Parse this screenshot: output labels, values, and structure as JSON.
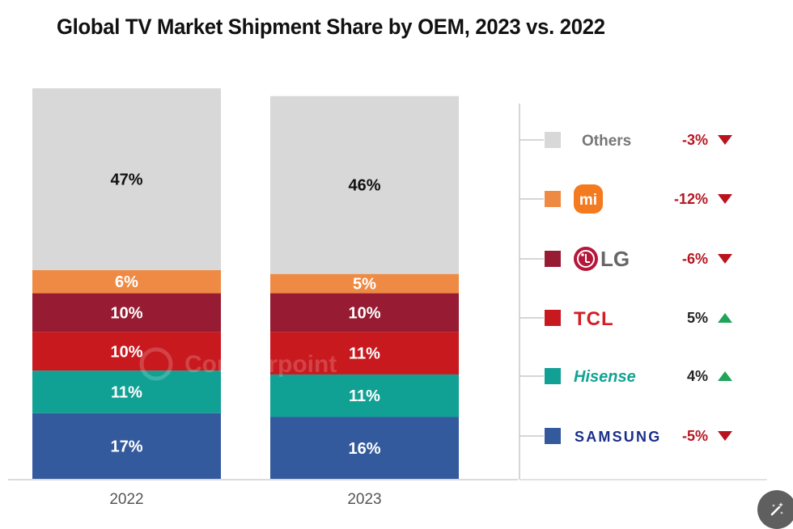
{
  "chart_data": {
    "type": "bar",
    "stacked": true,
    "title": "Global TV Market Shipment Share by OEM, 2023 vs. 2022",
    "xlabel": "",
    "ylabel": "",
    "ylim": [
      0,
      100
    ],
    "grid": false,
    "categories": [
      "2022",
      "2023"
    ],
    "series": [
      {
        "name": "Samsung",
        "color": "#345a9e",
        "label_color": "#ffffff",
        "values": [
          17,
          16
        ],
        "labels": [
          "17%",
          "16%"
        ]
      },
      {
        "name": "Hisense",
        "color": "#11a094",
        "label_color": "#ffffff",
        "values": [
          11,
          11
        ],
        "labels": [
          "11%",
          "11%"
        ]
      },
      {
        "name": "TCL",
        "color": "#c8191f",
        "label_color": "#ffffff",
        "values": [
          10,
          11
        ],
        "labels": [
          "10%",
          "11%"
        ]
      },
      {
        "name": "LG",
        "color": "#971c33",
        "label_color": "#ffffff",
        "values": [
          10,
          10
        ],
        "labels": [
          "10%",
          "10%"
        ]
      },
      {
        "name": "Xiaomi",
        "color": "#ef8a44",
        "label_color": "#ffffff",
        "values": [
          6,
          5
        ],
        "labels": [
          "6%",
          "5%"
        ]
      },
      {
        "name": "Others",
        "color": "#d8d8d8",
        "label_color": "#111111",
        "values": [
          47,
          46
        ],
        "labels": [
          "47%",
          "46%"
        ]
      }
    ],
    "legend": {
      "placement": "right",
      "items": [
        {
          "name": "Others",
          "brand_text": "Others",
          "color": "#d8d8d8",
          "text_color": "#777777",
          "change": "-3%",
          "direction": "down",
          "logo": "text"
        },
        {
          "name": "Xiaomi",
          "brand_text": "mi",
          "color": "#ef8a44",
          "text_color": "#ffffff",
          "change": "-12%",
          "direction": "down",
          "logo": "xiaomi-logo"
        },
        {
          "name": "LG",
          "brand_text": "LG",
          "color": "#971c33",
          "text_color": "#666666",
          "change": "-6%",
          "direction": "down",
          "logo": "lg-logo"
        },
        {
          "name": "TCL",
          "brand_text": "TCL",
          "color": "#c8191f",
          "text_color": "#d41d24",
          "change": "5%",
          "direction": "up",
          "logo": "text"
        },
        {
          "name": "Hisense",
          "brand_text": "Hisense",
          "color": "#11a094",
          "text_color": "#12a394",
          "change": "4%",
          "direction": "up",
          "logo": "text"
        },
        {
          "name": "Samsung",
          "brand_text": "SAMSUNG",
          "color": "#345a9e",
          "text_color": "#1b2f8a",
          "change": "-5%",
          "direction": "down",
          "logo": "text"
        }
      ]
    },
    "colors": {
      "down": "#b8141f",
      "up": "#1fa45a",
      "down_text": "#b8141f",
      "up_text": "#222222"
    },
    "watermark": "Counterpoint"
  },
  "fab": {
    "icon": "magic-wand-icon"
  }
}
